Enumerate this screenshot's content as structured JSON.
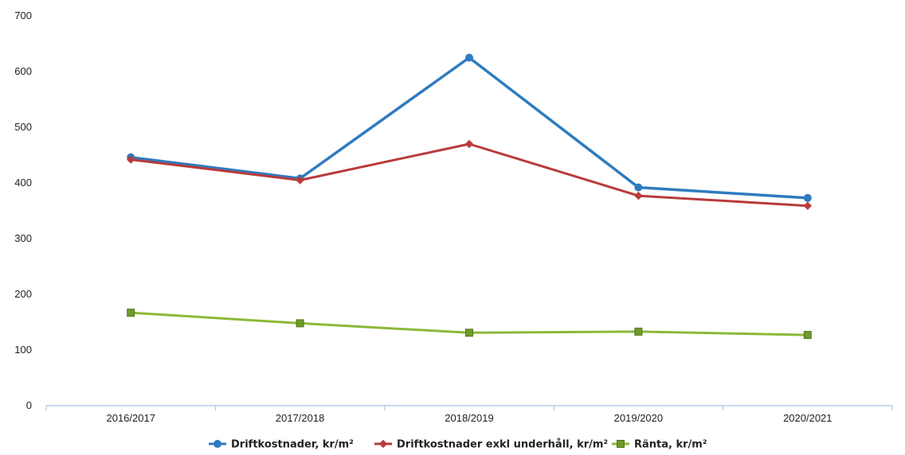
{
  "chart_data": {
    "type": "line",
    "title": "",
    "xlabel": "",
    "ylabel": "",
    "ylim": [
      0,
      700
    ],
    "yticks": [
      0,
      100,
      200,
      300,
      400,
      500,
      600,
      700
    ],
    "grid": false,
    "legend_position": "bottom",
    "categories": [
      "2016/2017",
      "2017/2018",
      "2018/2019",
      "2019/2020",
      "2020/2021"
    ],
    "series": [
      {
        "name": "Driftkostnader, kr/m²",
        "color": "#2e7bbf",
        "marker": "circle",
        "values": [
          446,
          408,
          625,
          392,
          373
        ]
      },
      {
        "name": "Driftkostnader exkl underhåll, kr/m²",
        "color": "#b83b3b",
        "marker": "diamond",
        "values": [
          442,
          405,
          470,
          377,
          359
        ]
      },
      {
        "name": "Ränta, kr/m²",
        "color": "#8cb83a",
        "marker": "square",
        "values": [
          167,
          148,
          131,
          133,
          127
        ]
      }
    ]
  }
}
